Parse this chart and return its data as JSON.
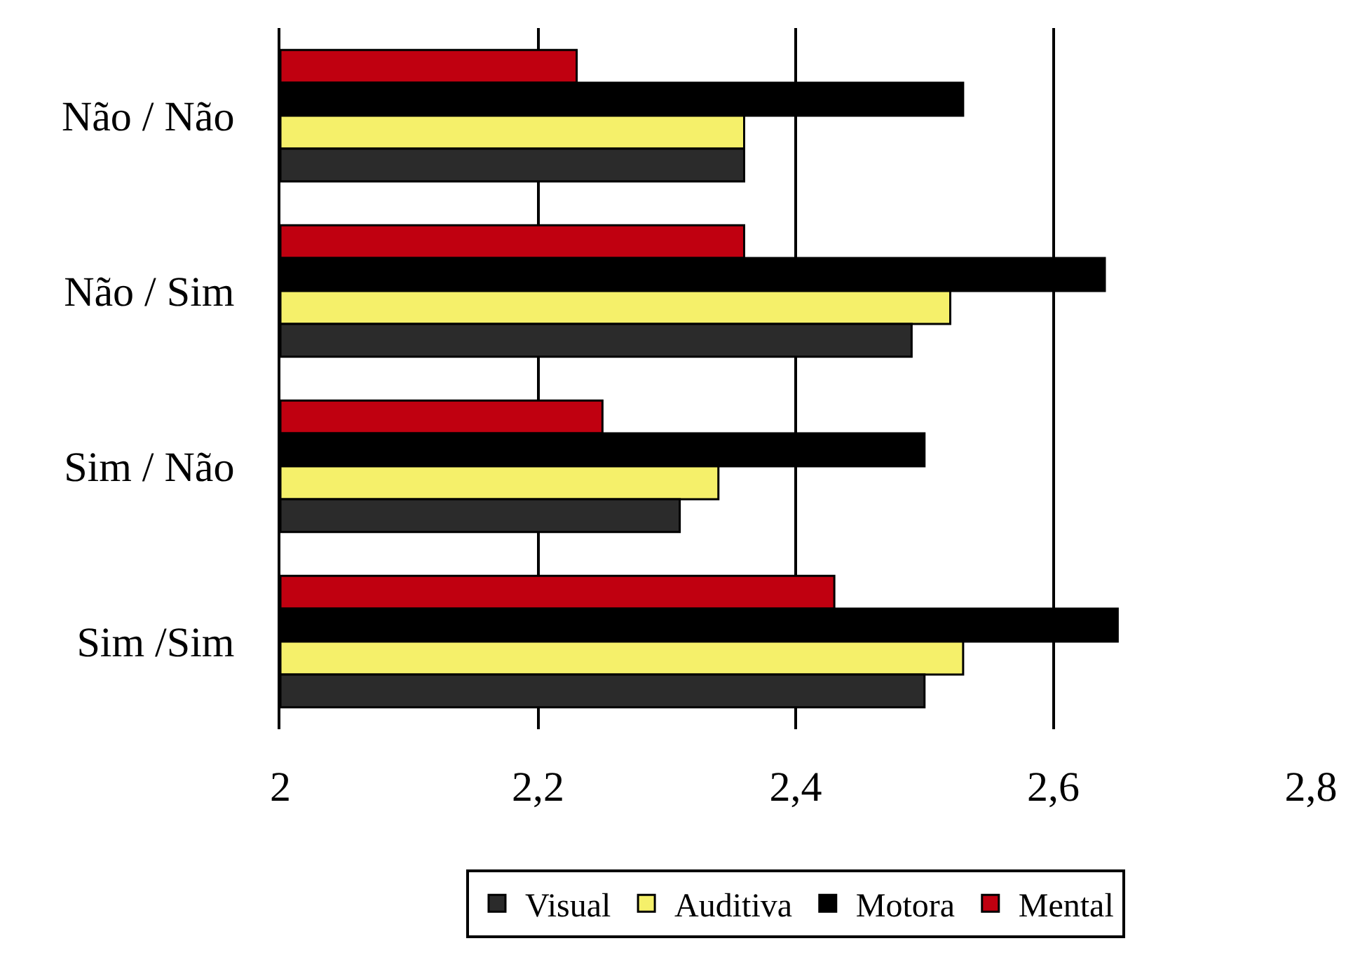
{
  "chart_data": {
    "type": "bar",
    "orientation": "horizontal",
    "categories": [
      "Não / Não",
      "Não / Sim",
      "Sim / Não",
      "Sim /Sim"
    ],
    "series": [
      {
        "name": "Visual",
        "color": "#2b2b2b",
        "values": [
          2.36,
          2.49,
          2.31,
          2.5
        ]
      },
      {
        "name": "Auditiva",
        "color": "#f5f06a",
        "values": [
          2.36,
          2.52,
          2.34,
          2.53
        ]
      },
      {
        "name": "Motora",
        "color": "#000000",
        "values": [
          2.53,
          2.64,
          2.5,
          2.65
        ]
      },
      {
        "name": "Mental",
        "color": "#c00010",
        "values": [
          2.23,
          2.36,
          2.25,
          2.43
        ]
      }
    ],
    "xlim": [
      2,
      2.8
    ],
    "xticks": [
      2,
      {
        "value": 2.2,
        "label": "2,2"
      },
      {
        "value": 2.4,
        "label": "2,4"
      },
      {
        "value": 2.6,
        "label": "2,6"
      },
      {
        "value": 2.8,
        "label": "2,8"
      }
    ],
    "grid": "x",
    "legend": "bottom"
  }
}
